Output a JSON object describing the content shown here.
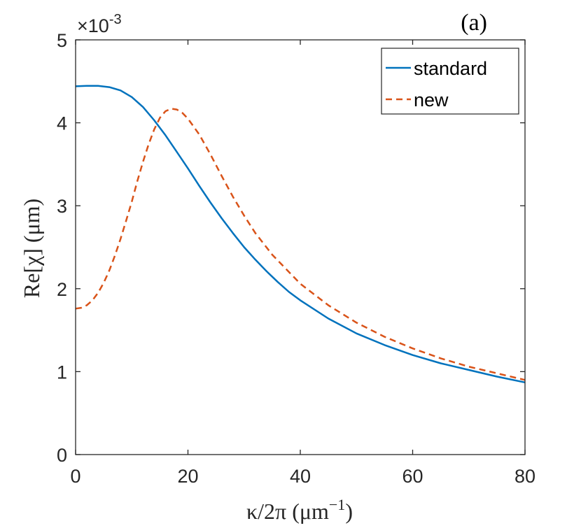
{
  "chart_data": {
    "type": "line",
    "panel_label": "(a)",
    "exponent_label": {
      "base": "×10",
      "power": "-3"
    },
    "xlabel": {
      "main": "κ/2π (μm",
      "sup": "−1",
      "close": ")"
    },
    "ylabel": "Re[χ] (μm)",
    "xlim": [
      0,
      80
    ],
    "ylim": [
      0,
      5
    ],
    "x_ticks": [
      0,
      20,
      40,
      60,
      80
    ],
    "x_tick_labels": [
      "0",
      "20",
      "40",
      "60",
      "80"
    ],
    "y_ticks": [
      0,
      1,
      2,
      3,
      4,
      5
    ],
    "y_tick_labels": [
      "0",
      "1",
      "2",
      "3",
      "4",
      "5"
    ],
    "grid": false,
    "legend_position": "top-right",
    "series": [
      {
        "name": "standard",
        "style": "solid",
        "color": "#0072BD",
        "x": [
          0,
          2,
          4,
          6,
          8,
          10,
          12,
          14,
          16,
          18,
          20,
          22,
          24,
          26,
          28,
          30,
          32,
          34,
          36,
          38,
          40,
          45,
          50,
          55,
          60,
          65,
          70,
          75,
          80
        ],
        "y": [
          4.44,
          4.445,
          4.445,
          4.43,
          4.39,
          4.31,
          4.19,
          4.03,
          3.85,
          3.65,
          3.45,
          3.24,
          3.04,
          2.85,
          2.67,
          2.5,
          2.35,
          2.21,
          2.08,
          1.96,
          1.86,
          1.64,
          1.46,
          1.32,
          1.2,
          1.1,
          1.02,
          0.94,
          0.87
        ]
      },
      {
        "name": "new",
        "style": "dashed",
        "color": "#D95319",
        "x": [
          0,
          1,
          2,
          3,
          4,
          5,
          6,
          7,
          8,
          9,
          10,
          11,
          12,
          13,
          14,
          15,
          16,
          17,
          18,
          19,
          20,
          22,
          24,
          26,
          28,
          30,
          32,
          35,
          40,
          45,
          50,
          55,
          60,
          65,
          70,
          75,
          80
        ],
        "y": [
          1.76,
          1.77,
          1.8,
          1.86,
          1.95,
          2.07,
          2.22,
          2.4,
          2.6,
          2.82,
          3.05,
          3.3,
          3.53,
          3.74,
          3.92,
          4.06,
          4.14,
          4.17,
          4.16,
          4.12,
          4.05,
          3.86,
          3.62,
          3.36,
          3.11,
          2.88,
          2.67,
          2.41,
          2.06,
          1.8,
          1.59,
          1.42,
          1.28,
          1.16,
          1.06,
          0.98,
          0.9
        ]
      }
    ]
  }
}
